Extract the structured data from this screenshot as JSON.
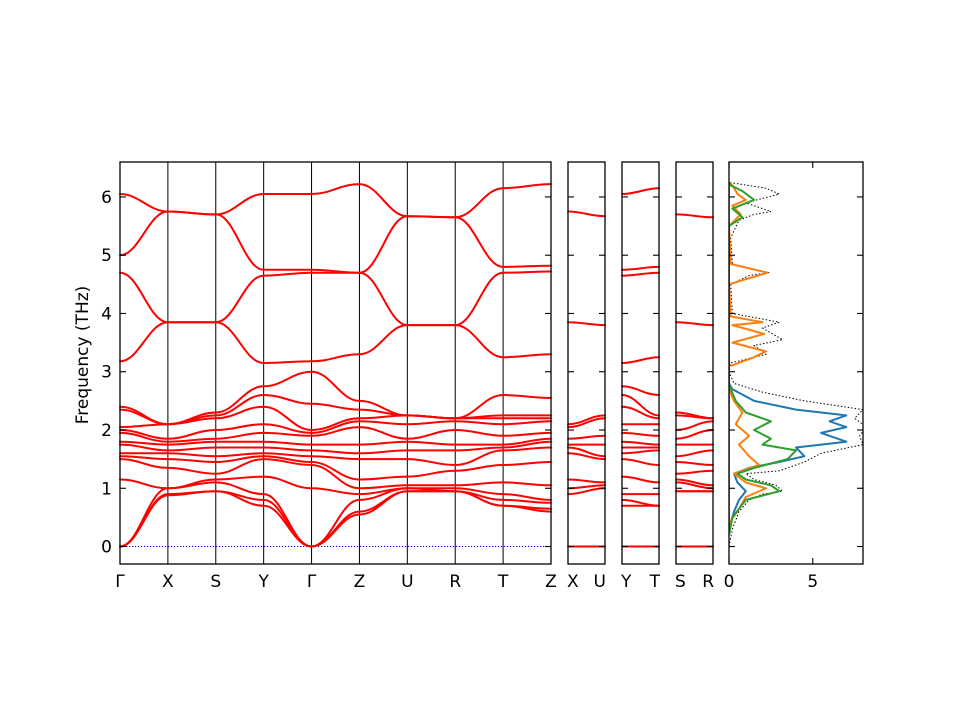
{
  "chart_data": [
    {
      "type": "line",
      "ylabel": "Frequency (THz)",
      "ylim": [
        -0.3,
        6.6
      ],
      "yticks": [
        0,
        1,
        2,
        3,
        4,
        5,
        6
      ],
      "segments": [
        {
          "labels": [
            "Γ",
            "X",
            "S",
            "Y",
            "Γ",
            "Z",
            "U",
            "R",
            "T",
            "Z"
          ],
          "label_x": [
            0,
            1,
            2,
            3,
            4,
            5,
            6,
            7,
            8,
            9
          ],
          "x": [
            0,
            1,
            2,
            3,
            4,
            5,
            6,
            7,
            8,
            9
          ],
          "bands": [
            [
              6.05,
              5.75,
              5.7,
              6.05,
              6.05,
              6.22,
              5.67,
              5.65,
              6.15,
              6.22
            ],
            [
              5.0,
              5.75,
              5.7,
              4.75,
              4.75,
              4.7,
              5.67,
              5.65,
              4.8,
              4.82
            ],
            [
              4.7,
              3.85,
              3.85,
              4.65,
              4.7,
              4.7,
              3.8,
              3.8,
              4.7,
              4.72
            ],
            [
              3.18,
              3.85,
              3.85,
              3.15,
              3.18,
              3.3,
              3.8,
              3.8,
              3.25,
              3.3
            ],
            [
              2.4,
              2.1,
              2.3,
              2.75,
              3.0,
              2.5,
              2.25,
              2.2,
              2.6,
              2.55
            ],
            [
              2.35,
              2.1,
              2.25,
              2.6,
              2.45,
              2.35,
              2.25,
              2.2,
              2.25,
              2.25
            ],
            [
              2.05,
              2.1,
              2.2,
              2.4,
              2.0,
              2.2,
              2.25,
              2.2,
              2.2,
              2.2
            ],
            [
              2.0,
              1.85,
              2.0,
              2.1,
              1.95,
              2.15,
              2.1,
              2.15,
              2.1,
              2.15
            ],
            [
              1.95,
              1.8,
              1.85,
              1.95,
              1.9,
              2.05,
              1.85,
              2.0,
              1.9,
              1.95
            ],
            [
              1.8,
              1.75,
              1.8,
              1.8,
              1.75,
              1.75,
              1.8,
              1.75,
              1.75,
              1.85
            ],
            [
              1.75,
              1.65,
              1.7,
              1.7,
              1.65,
              1.6,
              1.65,
              1.65,
              1.7,
              1.8
            ],
            [
              1.6,
              1.6,
              1.55,
              1.6,
              1.55,
              1.5,
              1.5,
              1.4,
              1.65,
              1.7
            ],
            [
              1.55,
              1.5,
              1.45,
              1.55,
              1.45,
              1.15,
              1.2,
              1.3,
              1.4,
              1.45
            ],
            [
              1.5,
              1.35,
              1.25,
              1.5,
              1.4,
              1.0,
              1.05,
              1.05,
              1.1,
              1.05
            ],
            [
              1.15,
              1.0,
              1.15,
              1.2,
              1.0,
              0.9,
              1.0,
              1.0,
              0.9,
              0.8
            ],
            [
              0.0,
              1.0,
              1.1,
              0.9,
              0.0,
              0.8,
              1.0,
              0.95,
              0.8,
              0.75
            ],
            [
              0.0,
              0.9,
              0.95,
              0.8,
              0.0,
              0.6,
              0.95,
              0.95,
              0.7,
              0.65
            ],
            [
              0.0,
              0.88,
              0.95,
              0.7,
              0.0,
              0.55,
              0.95,
              0.95,
              0.7,
              0.6
            ]
          ]
        },
        {
          "labels": [
            "X",
            "U"
          ],
          "label_x": [
            0,
            1
          ],
          "x": [
            0,
            1
          ],
          "bands": [
            [
              5.75,
              5.67
            ],
            [
              3.85,
              3.8
            ],
            [
              2.1,
              2.25
            ],
            [
              2.05,
              2.2
            ],
            [
              1.85,
              1.9
            ],
            [
              1.75,
              1.75
            ],
            [
              1.7,
              1.55
            ],
            [
              1.6,
              1.5
            ],
            [
              1.15,
              1.1
            ],
            [
              1.0,
              1.05
            ],
            [
              0.9,
              1.0
            ],
            [
              0.0,
              0.0
            ]
          ]
        },
        {
          "labels": [
            "Y",
            "T"
          ],
          "label_x": [
            0,
            1
          ],
          "x": [
            0,
            1
          ],
          "bands": [
            [
              6.05,
              6.15
            ],
            [
              4.75,
              4.8
            ],
            [
              4.65,
              4.7
            ],
            [
              3.15,
              3.25
            ],
            [
              2.75,
              2.6
            ],
            [
              2.6,
              2.25
            ],
            [
              2.4,
              2.2
            ],
            [
              2.1,
              2.1
            ],
            [
              1.95,
              1.9
            ],
            [
              1.8,
              1.75
            ],
            [
              1.7,
              1.7
            ],
            [
              1.6,
              1.65
            ],
            [
              1.5,
              1.4
            ],
            [
              1.2,
              1.1
            ],
            [
              0.9,
              0.9
            ],
            [
              0.8,
              0.7
            ],
            [
              0.7,
              0.7
            ],
            [
              0.0,
              0.0
            ]
          ]
        },
        {
          "labels": [
            "S",
            "R"
          ],
          "label_x": [
            0,
            1
          ],
          "x": [
            0,
            1
          ],
          "bands": [
            [
              5.7,
              5.65
            ],
            [
              3.85,
              3.8
            ],
            [
              2.3,
              2.2
            ],
            [
              2.25,
              2.2
            ],
            [
              2.0,
              2.15
            ],
            [
              1.85,
              2.0
            ],
            [
              1.75,
              1.75
            ],
            [
              1.55,
              1.65
            ],
            [
              1.45,
              1.4
            ],
            [
              1.25,
              1.3
            ],
            [
              1.15,
              1.05
            ],
            [
              1.1,
              1.0
            ],
            [
              0.95,
              0.95
            ],
            [
              0.95,
              0.95
            ],
            [
              0.0,
              0.0
            ]
          ]
        }
      ]
    },
    {
      "type": "line",
      "xlim": [
        0,
        8
      ],
      "xticks": [
        0,
        5
      ],
      "ylim": [
        -0.3,
        6.6
      ],
      "series": [
        {
          "color": "#000000",
          "style": "dotted",
          "points": [
            [
              0,
              0
            ],
            [
              0.2,
              0.3
            ],
            [
              0.6,
              0.6
            ],
            [
              1.2,
              0.8
            ],
            [
              2.0,
              0.9
            ],
            [
              3.2,
              0.95
            ],
            [
              2.8,
              1.05
            ],
            [
              1.5,
              1.15
            ],
            [
              1.0,
              1.25
            ],
            [
              3.0,
              1.3
            ],
            [
              4.5,
              1.45
            ],
            [
              5.5,
              1.6
            ],
            [
              8.0,
              1.75
            ],
            [
              7.8,
              1.9
            ],
            [
              8.2,
              2.05
            ],
            [
              7.5,
              2.2
            ],
            [
              8.0,
              2.35
            ],
            [
              4.5,
              2.5
            ],
            [
              2.0,
              2.65
            ],
            [
              0.3,
              2.8
            ],
            [
              0.0,
              3.0
            ],
            [
              0.1,
              3.15
            ],
            [
              2.2,
              3.3
            ],
            [
              1.5,
              3.45
            ],
            [
              3.2,
              3.55
            ],
            [
              2.0,
              3.75
            ],
            [
              3.0,
              3.85
            ],
            [
              0.2,
              4.0
            ],
            [
              0.1,
              4.5
            ],
            [
              1.2,
              4.65
            ],
            [
              2.4,
              4.7
            ],
            [
              0.2,
              4.85
            ],
            [
              0.1,
              5.3
            ],
            [
              0.6,
              5.6
            ],
            [
              1.5,
              5.7
            ],
            [
              2.5,
              5.75
            ],
            [
              1.0,
              5.9
            ],
            [
              3.0,
              6.05
            ],
            [
              2.2,
              6.15
            ],
            [
              0.0,
              6.25
            ]
          ]
        },
        {
          "color": "#1f77b4",
          "style": "solid",
          "points": [
            [
              0,
              0.3
            ],
            [
              0.3,
              0.6
            ],
            [
              0.6,
              0.8
            ],
            [
              1.0,
              0.95
            ],
            [
              0.5,
              1.1
            ],
            [
              0.3,
              1.25
            ],
            [
              1.2,
              1.35
            ],
            [
              3.0,
              1.45
            ],
            [
              4.5,
              1.55
            ],
            [
              4.0,
              1.7
            ],
            [
              7.0,
              1.8
            ],
            [
              5.5,
              1.95
            ],
            [
              7.0,
              2.05
            ],
            [
              6.0,
              2.15
            ],
            [
              7.0,
              2.25
            ],
            [
              4.0,
              2.35
            ],
            [
              1.5,
              2.5
            ],
            [
              0.2,
              2.7
            ],
            [
              0.0,
              2.8
            ]
          ]
        },
        {
          "color": "#ff7f0e",
          "style": "solid",
          "points": [
            [
              0.1,
              3.1
            ],
            [
              1.5,
              3.25
            ],
            [
              2.2,
              3.35
            ],
            [
              0.2,
              3.5
            ],
            [
              2.1,
              3.65
            ],
            [
              0.2,
              3.8
            ],
            [
              2.0,
              3.85
            ],
            [
              0.1,
              3.95
            ],
            [
              0.0,
              4.5
            ],
            [
              2.3,
              4.7
            ],
            [
              0.1,
              4.85
            ],
            [
              0.0,
              5.5
            ],
            [
              0.7,
              5.7
            ],
            [
              0.2,
              5.85
            ],
            [
              1.0,
              5.95
            ],
            [
              0.5,
              6.05
            ],
            [
              0.2,
              6.2
            ],
            [
              0.0,
              6.25
            ],
            [
              0,
              0.4
            ],
            [
              0.5,
              0.6
            ],
            [
              1.0,
              0.85
            ],
            [
              2.2,
              1.0
            ],
            [
              1.0,
              1.1
            ],
            [
              0.3,
              1.25
            ],
            [
              1.8,
              1.4
            ],
            [
              1.2,
              1.55
            ],
            [
              0.6,
              1.75
            ],
            [
              1.2,
              1.9
            ],
            [
              0.4,
              2.1
            ],
            [
              0.8,
              2.3
            ],
            [
              0.3,
              2.5
            ],
            [
              0.0,
              2.7
            ]
          ]
        },
        {
          "color": "#2ca02c",
          "style": "solid",
          "points": [
            [
              0,
              0.2
            ],
            [
              0.2,
              0.5
            ],
            [
              1.0,
              0.8
            ],
            [
              3.0,
              0.95
            ],
            [
              2.5,
              1.05
            ],
            [
              1.0,
              1.15
            ],
            [
              0.5,
              1.25
            ],
            [
              1.5,
              1.35
            ],
            [
              3.5,
              1.5
            ],
            [
              4.0,
              1.65
            ],
            [
              2.0,
              1.75
            ],
            [
              2.5,
              1.85
            ],
            [
              1.5,
              2.0
            ],
            [
              2.5,
              2.15
            ],
            [
              1.0,
              2.3
            ],
            [
              0.4,
              2.5
            ],
            [
              0.1,
              2.7
            ],
            [
              0.0,
              2.8
            ],
            [
              0,
              5.5
            ],
            [
              0.8,
              5.65
            ],
            [
              0.2,
              5.8
            ],
            [
              1.5,
              5.95
            ],
            [
              0.8,
              6.1
            ],
            [
              0.1,
              6.2
            ],
            [
              0,
              6.25
            ]
          ]
        }
      ]
    }
  ]
}
